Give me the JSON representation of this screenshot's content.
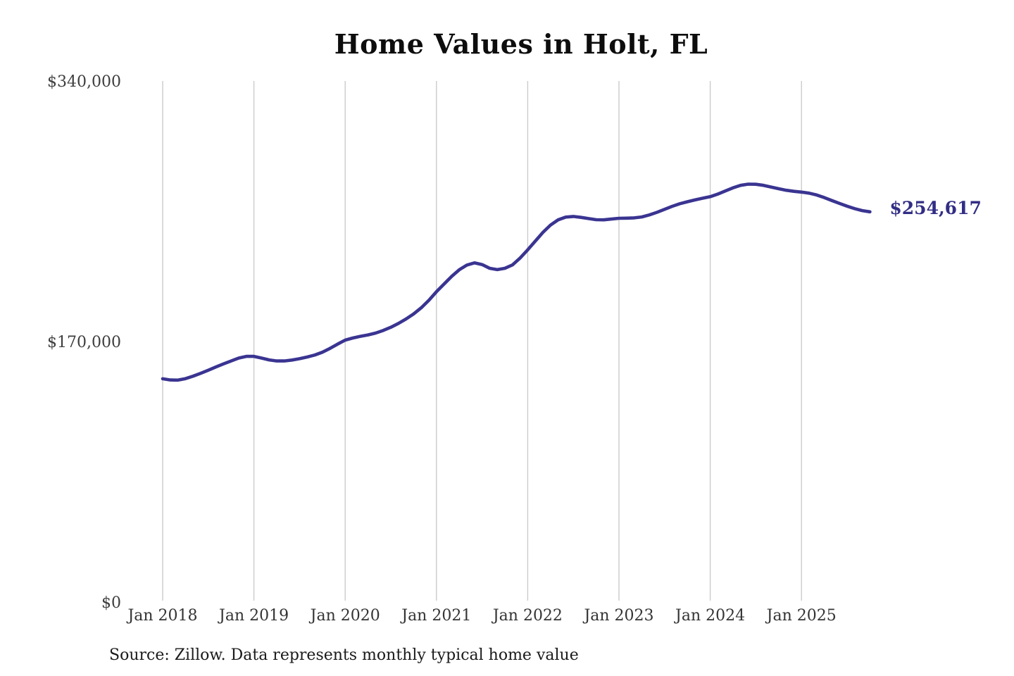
{
  "chart_data": {
    "type": "line",
    "title": "Home Values in Holt, FL",
    "source_note": "Source: Zillow. Data represents monthly typical home value",
    "series_name": "Typical home value",
    "end_label": "$254,617",
    "end_value": 254617,
    "ylim": [
      0,
      340000
    ],
    "y_ticks": [
      {
        "label": "$340,000",
        "value": 340000
      },
      {
        "label": "$170,000",
        "value": 170000
      },
      {
        "label": "$0",
        "value": 0
      }
    ],
    "x_tick_labels": [
      "Jan 2018",
      "Jan 2019",
      "Jan 2020",
      "Jan 2021",
      "Jan 2022",
      "Jan 2023",
      "Jan 2024",
      "Jan 2025"
    ],
    "grid_on": true,
    "legend": "none",
    "colors": {
      "line": "#3a3491",
      "end_label": "#322e85",
      "grid": "#cbcbcb",
      "ticks": "#3d3d3d",
      "title": "#0d0d0d",
      "source": "#1a1a1a",
      "background": "#ffffff"
    },
    "months": [
      "2018-01",
      "2018-02",
      "2018-03",
      "2018-04",
      "2018-05",
      "2018-06",
      "2018-07",
      "2018-08",
      "2018-09",
      "2018-10",
      "2018-11",
      "2018-12",
      "2019-01",
      "2019-02",
      "2019-03",
      "2019-04",
      "2019-05",
      "2019-06",
      "2019-07",
      "2019-08",
      "2019-09",
      "2019-10",
      "2019-11",
      "2019-12",
      "2020-01",
      "2020-02",
      "2020-03",
      "2020-04",
      "2020-05",
      "2020-06",
      "2020-07",
      "2020-08",
      "2020-09",
      "2020-10",
      "2020-11",
      "2020-12",
      "2021-01",
      "2021-02",
      "2021-03",
      "2021-04",
      "2021-05",
      "2021-06",
      "2021-07",
      "2021-08",
      "2021-09",
      "2021-10",
      "2021-11",
      "2021-12",
      "2022-01",
      "2022-02",
      "2022-03",
      "2022-04",
      "2022-05",
      "2022-06",
      "2022-07",
      "2022-08",
      "2022-09",
      "2022-10",
      "2022-11",
      "2022-12",
      "2023-01",
      "2023-02",
      "2023-03",
      "2023-04",
      "2023-05",
      "2023-06",
      "2023-07",
      "2023-08",
      "2023-09",
      "2023-10",
      "2023-11",
      "2023-12",
      "2024-01",
      "2024-02",
      "2024-03",
      "2024-04",
      "2024-05",
      "2024-06",
      "2024-07",
      "2024-08",
      "2024-09",
      "2024-10",
      "2024-11",
      "2024-12",
      "2025-01",
      "2025-02",
      "2025-03",
      "2025-04",
      "2025-05",
      "2025-06",
      "2025-07",
      "2025-08",
      "2025-09",
      "2025-10"
    ],
    "values": [
      145700,
      144900,
      144800,
      145800,
      147400,
      149300,
      151300,
      153400,
      155400,
      157300,
      159200,
      160300,
      160300,
      159200,
      158000,
      157300,
      157300,
      157900,
      158800,
      159900,
      161200,
      163000,
      165500,
      168300,
      170900,
      172300,
      173400,
      174300,
      175500,
      177200,
      179300,
      181800,
      184700,
      188000,
      192000,
      196900,
      202500,
      207500,
      212500,
      216800,
      219900,
      221300,
      220200,
      217800,
      216900,
      217800,
      220000,
      224500,
      229800,
      235500,
      241200,
      246000,
      249400,
      251200,
      251600,
      251000,
      250200,
      249500,
      249400,
      249900,
      250400,
      250500,
      250700,
      251300,
      252600,
      254300,
      256300,
      258200,
      259900,
      261200,
      262400,
      263500,
      264500,
      266200,
      268300,
      270300,
      271900,
      272700,
      272600,
      271900,
      270800,
      269700,
      268700,
      268000,
      267500,
      266800,
      265600,
      263900,
      262000,
      260100,
      258300,
      256700,
      255400,
      254617
    ]
  }
}
